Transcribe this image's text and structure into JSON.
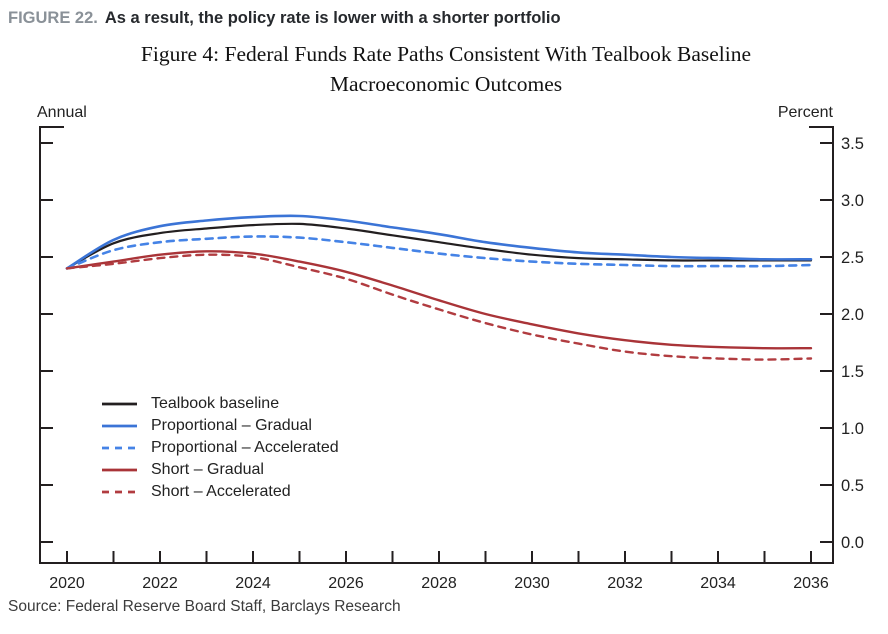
{
  "header": {
    "figure_label": "FIGURE 22.",
    "headline": "As a result, the policy rate is lower with a shorter portfolio"
  },
  "chart": {
    "title_line1": "Figure 4: Federal Funds Rate Paths Consistent With Tealbook Baseline",
    "title_line2": "Macroeconomic Outcomes",
    "left_axis_caption": "Annual",
    "right_axis_caption": "Percent"
  },
  "source": "Source: Federal Reserve Board Staff, Barclays Research",
  "colors": {
    "axis": "#231f20",
    "black_line": "#231f20",
    "blue_line": "#3b74d6",
    "blue_dashed_line": "#4583e6",
    "red_line": "#a93438",
    "red_dashed_line": "#b13c40",
    "figure_label_gray": "#8a9198",
    "headline_dark": "#26292d"
  },
  "chart_data": {
    "type": "line",
    "title": "Figure 4: Federal Funds Rate Paths Consistent With Tealbook Baseline Macroeconomic Outcomes",
    "xlabel": "",
    "ylabel": "Percent",
    "frequency_note": "Annual",
    "grid": false,
    "legend_position": "inside-lower-left",
    "xlim": [
      2020,
      2036
    ],
    "ylim": [
      0.0,
      3.5
    ],
    "x": [
      2020,
      2021,
      2022,
      2023,
      2024,
      2025,
      2026,
      2027,
      2028,
      2029,
      2030,
      2031,
      2032,
      2033,
      2034,
      2035,
      2036
    ],
    "xticks_labeled": [
      2020,
      2022,
      2024,
      2026,
      2028,
      2030,
      2032,
      2034,
      2036
    ],
    "xtick_labels": [
      "2020",
      "2022",
      "2024",
      "2026",
      "2028",
      "2030",
      "2032",
      "2034",
      "2036"
    ],
    "yticks": [
      0.0,
      0.5,
      1.0,
      1.5,
      2.0,
      2.5,
      3.0,
      3.5
    ],
    "ytick_labels": [
      "0.0",
      "0.5",
      "1.0",
      "1.5",
      "2.0",
      "2.5",
      "3.0",
      "3.5"
    ],
    "series": [
      {
        "name": "Tealbook baseline",
        "color": "#231f20",
        "line": "solid",
        "width": 2.2,
        "values": [
          2.4,
          2.62,
          2.71,
          2.75,
          2.78,
          2.79,
          2.75,
          2.69,
          2.63,
          2.57,
          2.52,
          2.49,
          2.48,
          2.47,
          2.47,
          2.47,
          2.47
        ]
      },
      {
        "name": "Proportional – Gradual",
        "color": "#3b74d6",
        "line": "solid",
        "width": 2.6,
        "values": [
          2.4,
          2.65,
          2.77,
          2.82,
          2.85,
          2.86,
          2.82,
          2.76,
          2.7,
          2.63,
          2.58,
          2.54,
          2.52,
          2.5,
          2.49,
          2.48,
          2.48
        ]
      },
      {
        "name": "Proportional – Accelerated",
        "color": "#4583e6",
        "line": "dashed",
        "width": 2.6,
        "values": [
          2.4,
          2.56,
          2.63,
          2.66,
          2.68,
          2.67,
          2.63,
          2.58,
          2.53,
          2.49,
          2.46,
          2.44,
          2.43,
          2.42,
          2.42,
          2.42,
          2.43
        ]
      },
      {
        "name": "Short – Gradual",
        "color": "#a93438",
        "line": "solid",
        "width": 2.4,
        "values": [
          2.4,
          2.46,
          2.52,
          2.55,
          2.53,
          2.46,
          2.37,
          2.25,
          2.12,
          2.0,
          1.91,
          1.83,
          1.77,
          1.73,
          1.71,
          1.7,
          1.7
        ]
      },
      {
        "name": "Short – Accelerated",
        "color": "#b13c40",
        "line": "dashed",
        "width": 2.4,
        "values": [
          2.4,
          2.44,
          2.49,
          2.52,
          2.5,
          2.41,
          2.31,
          2.17,
          2.04,
          1.92,
          1.82,
          1.74,
          1.67,
          1.63,
          1.61,
          1.6,
          1.61
        ]
      }
    ]
  }
}
